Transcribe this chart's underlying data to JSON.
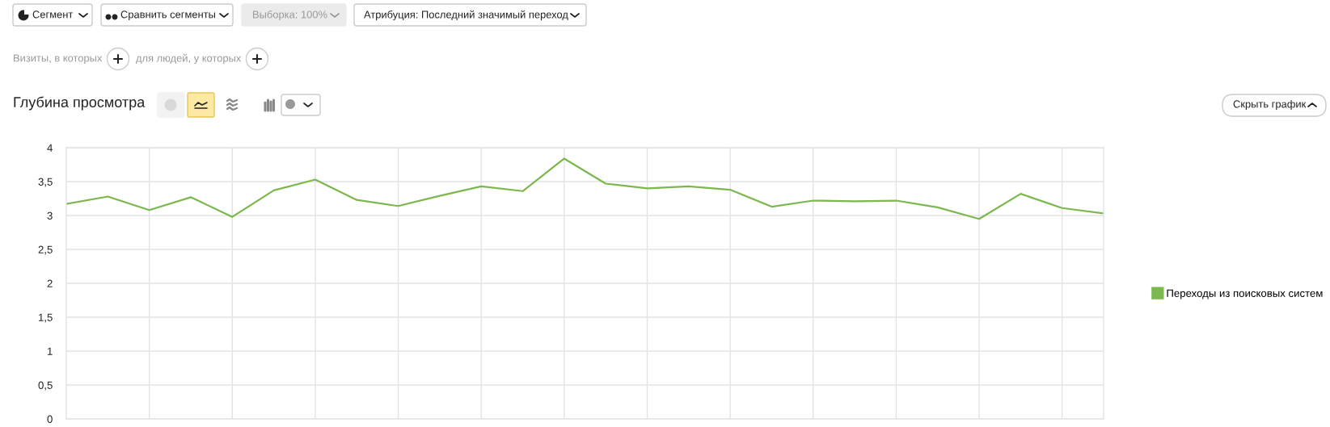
{
  "chart_data": {
    "type": "line",
    "title": "Глубина просмотра",
    "annotations": [
      "Сегмент",
      "Сравнить сегменты",
      "Выборка: 100%",
      "Атрибуция: Последний значимый переход",
      "Визиты, в которых",
      "для людей, у которых",
      "Скрыть график"
    ],
    "categories": [
      null,
      null,
      null,
      null,
      null,
      null,
      null,
      null,
      null,
      null,
      null,
      null,
      null,
      null,
      null,
      null,
      null,
      null,
      null,
      null,
      null,
      null,
      null,
      null,
      null,
      null
    ],
    "series": [
      {
        "name": "Переходы из поисковых систем",
        "color": "#7cb84d",
        "values": [
          3.17,
          3.28,
          3.08,
          3.27,
          2.98,
          3.37,
          3.53,
          3.23,
          3.14,
          3.29,
          3.43,
          3.36,
          3.84,
          3.47,
          3.4,
          3.43,
          3.38,
          3.13,
          3.22,
          3.21,
          3.22,
          3.12,
          2.95,
          3.32,
          3.11,
          3.03
        ]
      }
    ],
    "ylim": [
      0,
      4
    ],
    "yticks": [
      0,
      {
        "value": 0.5,
        "label": "0,5"
      },
      1,
      {
        "value": 1.5,
        "label": "1,5"
      },
      2,
      {
        "value": 2.5,
        "label": "2,5"
      },
      3,
      {
        "value": 3.5,
        "label": "3,5"
      },
      4
    ],
    "grid": true,
    "legend": "right",
    "tick_labels": "y",
    "marker": "none",
    "line_style": "solid"
  }
}
